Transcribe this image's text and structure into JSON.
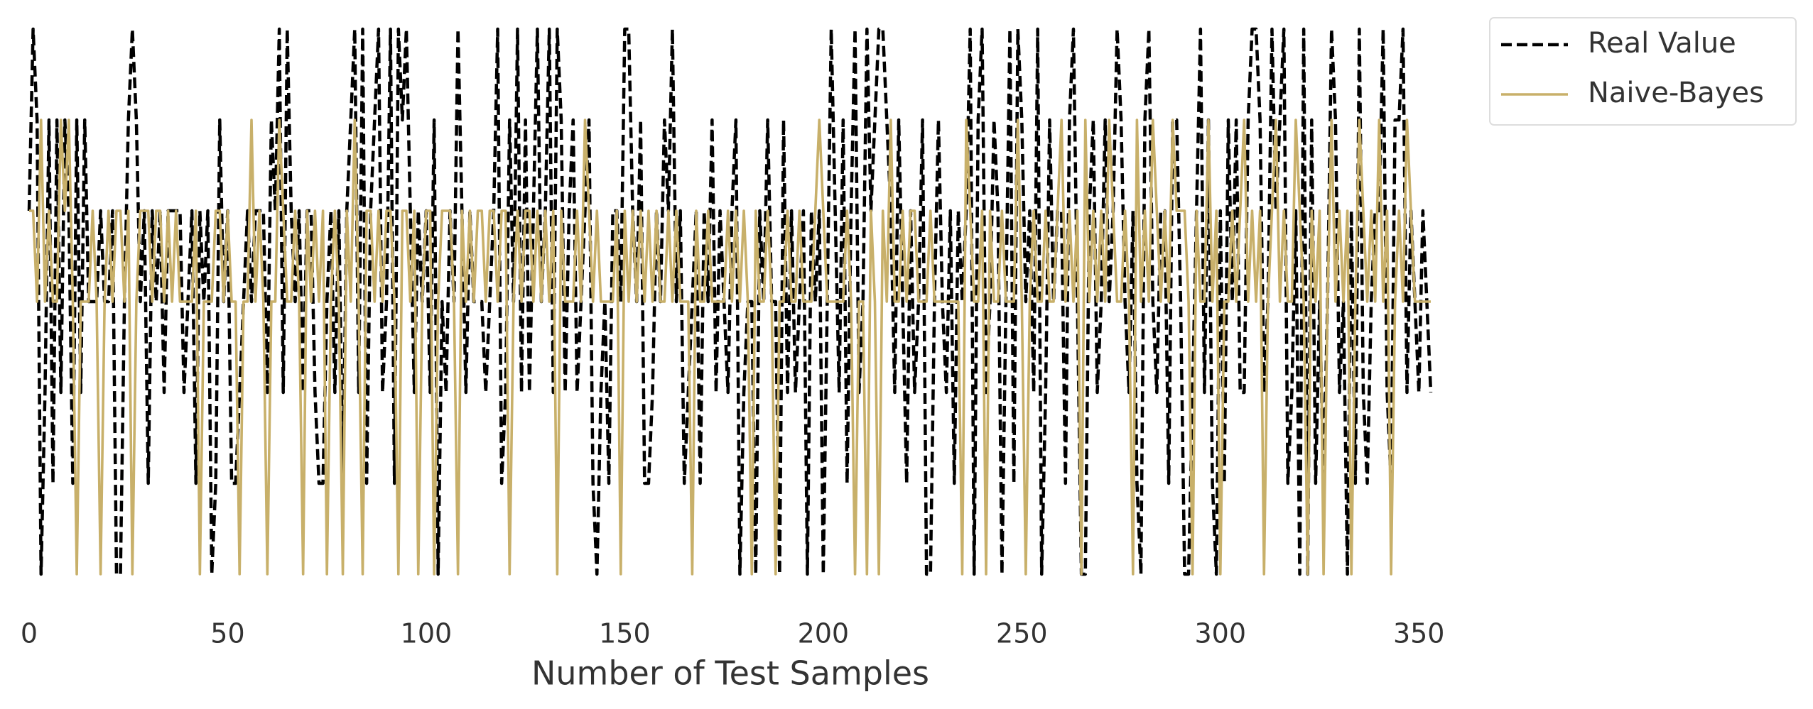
{
  "chart_data": {
    "type": "line",
    "x_label": "Number of Test Samples",
    "x": [
      0,
      1,
      2,
      3,
      4,
      5,
      6,
      7,
      8,
      9,
      10,
      11,
      12,
      13,
      14,
      15,
      16,
      17,
      18,
      19,
      20,
      21,
      22,
      23,
      24,
      25,
      26,
      27,
      28,
      29,
      30,
      31,
      32,
      33,
      34,
      35,
      36,
      37,
      38,
      39,
      40,
      41,
      42,
      43,
      44,
      45,
      46,
      47,
      48,
      49,
      50,
      51,
      52,
      53,
      54,
      55,
      56,
      57,
      58,
      59,
      60,
      61,
      62,
      63,
      64,
      65,
      66,
      67,
      68,
      69,
      70,
      71,
      72,
      73,
      74,
      75,
      76,
      77,
      78,
      79,
      80,
      81,
      82,
      83,
      84,
      85,
      86,
      87,
      88,
      89,
      90,
      91,
      92,
      93,
      94,
      95,
      96,
      97,
      98,
      99,
      100,
      101,
      102,
      103,
      104,
      105,
      106,
      107,
      108,
      109,
      110,
      111,
      112,
      113,
      114,
      115,
      116,
      117,
      118,
      119,
      120,
      121,
      122,
      123,
      124,
      125,
      126,
      127,
      128,
      129,
      130,
      131,
      132,
      133,
      134,
      135,
      136,
      137,
      138,
      139,
      140,
      141,
      142,
      143,
      144,
      145,
      146,
      147,
      148,
      149,
      150,
      151,
      152,
      153,
      154,
      155,
      156,
      157,
      158,
      159,
      160,
      161,
      162,
      163,
      164,
      165,
      166,
      167,
      168,
      169,
      170,
      171,
      172,
      173,
      174,
      175,
      176,
      177,
      178,
      179,
      180,
      181,
      182,
      183,
      184,
      185,
      186,
      187,
      188,
      189,
      190,
      191,
      192,
      193,
      194,
      195,
      196,
      197,
      198,
      199,
      200,
      201,
      202,
      203,
      204,
      205,
      206,
      207,
      208,
      209,
      210,
      211,
      212,
      213,
      214,
      215,
      216,
      217,
      218,
      219,
      220,
      221,
      222,
      223,
      224,
      225,
      226,
      227,
      228,
      229,
      230,
      231,
      232,
      233,
      234,
      235,
      236,
      237,
      238,
      239,
      240,
      241,
      242,
      243,
      244,
      245,
      246,
      247,
      248,
      249,
      250,
      251,
      252,
      253,
      254,
      255,
      256,
      257,
      258,
      259,
      260,
      261,
      262,
      263,
      264,
      265,
      266,
      267,
      268,
      269,
      270,
      271,
      272,
      273,
      274,
      275,
      276,
      277,
      278,
      279,
      280,
      281,
      282,
      283,
      284,
      285,
      286,
      287,
      288,
      289,
      290,
      291,
      292,
      293,
      294,
      295,
      296,
      297,
      298,
      299,
      300,
      301,
      302,
      303,
      304,
      305,
      306,
      307,
      308,
      309,
      310,
      311,
      312,
      313,
      314,
      315,
      316,
      317,
      318,
      319,
      320,
      321,
      322,
      323,
      324,
      325,
      326,
      327,
      328,
      329,
      330,
      331,
      332,
      333,
      334,
      335,
      336,
      337,
      338,
      339,
      340,
      341,
      342,
      343,
      344,
      345,
      346,
      347,
      348,
      349,
      350,
      351,
      352,
      353
    ],
    "series": [
      {
        "name": "Real Value",
        "color": "#000000",
        "dash": true,
        "values": [
          4,
          6,
          5,
          0,
          2,
          5,
          1,
          5,
          2,
          5,
          4,
          1,
          5,
          2,
          5,
          3,
          3,
          3,
          4,
          3,
          3,
          4,
          0,
          0,
          3,
          5,
          6,
          5,
          3,
          4,
          1,
          4,
          3,
          4,
          2,
          4,
          4,
          4,
          4,
          2,
          3,
          4,
          1,
          4,
          3,
          4,
          0,
          1,
          5,
          3,
          4,
          1,
          1,
          2,
          3,
          4,
          3,
          4,
          4,
          4,
          2,
          5,
          4,
          6,
          2,
          6,
          4,
          3,
          4,
          2,
          4,
          4,
          2,
          1,
          1,
          3,
          4,
          2,
          4,
          1,
          4,
          5,
          6,
          2,
          6,
          1,
          4,
          5,
          6,
          2,
          3,
          6,
          1,
          6,
          5,
          6,
          4,
          2,
          4,
          3,
          4,
          2,
          5,
          0,
          3,
          2,
          4,
          3,
          6,
          4,
          2,
          4,
          3,
          3,
          3,
          2,
          3,
          4,
          6,
          1,
          2,
          5,
          3,
          6,
          2,
          5,
          2,
          4,
          6,
          3,
          4,
          6,
          2,
          6,
          5,
          2,
          4,
          5,
          2,
          3,
          4,
          5,
          1,
          0,
          2,
          3,
          1,
          4,
          4,
          3,
          6,
          6,
          4,
          3,
          5,
          1,
          1,
          2,
          4,
          3,
          5,
          4,
          6,
          3,
          4,
          1,
          2,
          3,
          4,
          1,
          4,
          3,
          5,
          2,
          4,
          3,
          2,
          4,
          5,
          0,
          2,
          3,
          3,
          0,
          4,
          3,
          5,
          3,
          3,
          0,
          5,
          2,
          4,
          2,
          3,
          4,
          0,
          4,
          3,
          4,
          0,
          3,
          6,
          4,
          2,
          5,
          1,
          4,
          6,
          2,
          3,
          6,
          4,
          5,
          6,
          6,
          5,
          4,
          2,
          5,
          3,
          1,
          4,
          2,
          3,
          5,
          0,
          0,
          3,
          5,
          3,
          2,
          4,
          1,
          4,
          3,
          4,
          6,
          0,
          5,
          6,
          2,
          3,
          5,
          4,
          0,
          3,
          6,
          1,
          6,
          5,
          3,
          4,
          2,
          6,
          0,
          2,
          5,
          3,
          4,
          4,
          1,
          5,
          6,
          3,
          0,
          0,
          4,
          5,
          2,
          3,
          5,
          3,
          4,
          6,
          5,
          3,
          2,
          4,
          1,
          0,
          5,
          6,
          3,
          2,
          4,
          4,
          1,
          5,
          5,
          3,
          0,
          0,
          2,
          4,
          6,
          2,
          5,
          1,
          0,
          4,
          1,
          5,
          3,
          5,
          2,
          2,
          5,
          6,
          6,
          5,
          2,
          3,
          6,
          4,
          5,
          6,
          1,
          2,
          4,
          0,
          6,
          0,
          5,
          1,
          3,
          1,
          3,
          6,
          5,
          2,
          3,
          0,
          4,
          1,
          6,
          2,
          1,
          3,
          4,
          4,
          6,
          2,
          1,
          5,
          5,
          6,
          2,
          4,
          3,
          2,
          4,
          3,
          2
        ]
      },
      {
        "name": "Naive-Bayes",
        "color": "#c8b06a",
        "dash": false,
        "values": [
          4,
          4,
          3,
          5,
          3,
          4,
          3,
          3,
          5,
          4,
          5,
          3,
          0,
          3,
          3,
          3,
          4,
          3,
          0,
          3,
          4,
          3,
          4,
          4,
          3,
          4,
          0,
          3,
          4,
          4,
          4,
          3,
          4,
          4,
          3,
          4,
          3,
          4,
          3,
          3,
          3,
          3,
          4,
          0,
          3,
          3,
          3,
          4,
          4,
          3,
          4,
          3,
          3,
          0,
          3,
          3,
          5,
          3,
          4,
          3,
          0,
          3,
          3,
          5,
          4,
          3,
          3,
          4,
          3,
          0,
          4,
          3,
          4,
          3,
          4,
          0,
          3,
          4,
          3,
          0,
          4,
          3,
          5,
          3,
          0,
          4,
          4,
          3,
          4,
          3,
          4,
          4,
          3,
          0,
          4,
          4,
          3,
          4,
          0,
          3,
          4,
          4,
          0,
          3,
          4,
          4,
          4,
          3,
          0,
          4,
          3,
          4,
          3,
          4,
          4,
          3,
          4,
          4,
          3,
          4,
          4,
          0,
          3,
          4,
          3,
          4,
          4,
          3,
          4,
          3,
          4,
          3,
          4,
          0,
          4,
          3,
          3,
          3,
          4,
          3,
          5,
          4,
          3,
          4,
          3,
          3,
          3,
          3,
          4,
          0,
          4,
          3,
          4,
          3,
          4,
          3,
          4,
          3,
          4,
          3,
          3,
          4,
          3,
          4,
          3,
          3,
          3,
          0,
          4,
          3,
          3,
          4,
          3,
          3,
          3,
          3,
          4,
          3,
          4,
          3,
          4,
          3,
          0,
          4,
          3,
          3,
          4,
          3,
          0,
          3,
          3,
          4,
          3,
          3,
          4,
          3,
          3,
          3,
          4,
          5,
          4,
          3,
          3,
          3,
          3,
          3,
          4,
          3,
          0,
          3,
          3,
          0,
          4,
          3,
          0,
          4,
          3,
          5,
          3,
          3,
          4,
          3,
          4,
          4,
          3,
          3,
          3,
          4,
          3,
          3,
          3,
          3,
          3,
          3,
          3,
          0,
          5,
          4,
          3,
          3,
          4,
          0,
          4,
          3,
          3,
          4,
          3,
          3,
          3,
          5,
          3,
          0,
          3,
          4,
          3,
          3,
          4,
          3,
          3,
          4,
          5,
          3,
          4,
          3,
          4,
          0,
          5,
          3,
          4,
          3,
          4,
          3,
          5,
          4,
          3,
          3,
          4,
          3,
          0,
          5,
          3,
          4,
          3,
          5,
          4,
          3,
          4,
          3,
          5,
          4,
          4,
          4,
          3,
          0,
          4,
          3,
          3,
          5,
          3,
          4,
          0,
          3,
          3,
          4,
          3,
          4,
          5,
          3,
          4,
          3,
          4,
          0,
          3,
          4,
          5,
          3,
          4,
          3,
          3,
          5,
          4,
          3,
          0,
          4,
          3,
          4,
          0,
          3,
          5,
          3,
          4,
          3,
          4,
          0,
          3,
          5,
          4,
          3,
          4,
          3,
          5,
          3,
          4,
          0,
          3,
          4,
          3,
          5,
          4,
          3,
          3,
          3,
          3,
          3
        ]
      }
    ],
    "xlim": [
      0,
      353
    ],
    "ylim": [
      0,
      6
    ],
    "xticks": [
      0,
      50,
      100,
      150,
      200,
      250,
      300,
      350
    ],
    "grid": false,
    "legend": "outside upper right"
  }
}
